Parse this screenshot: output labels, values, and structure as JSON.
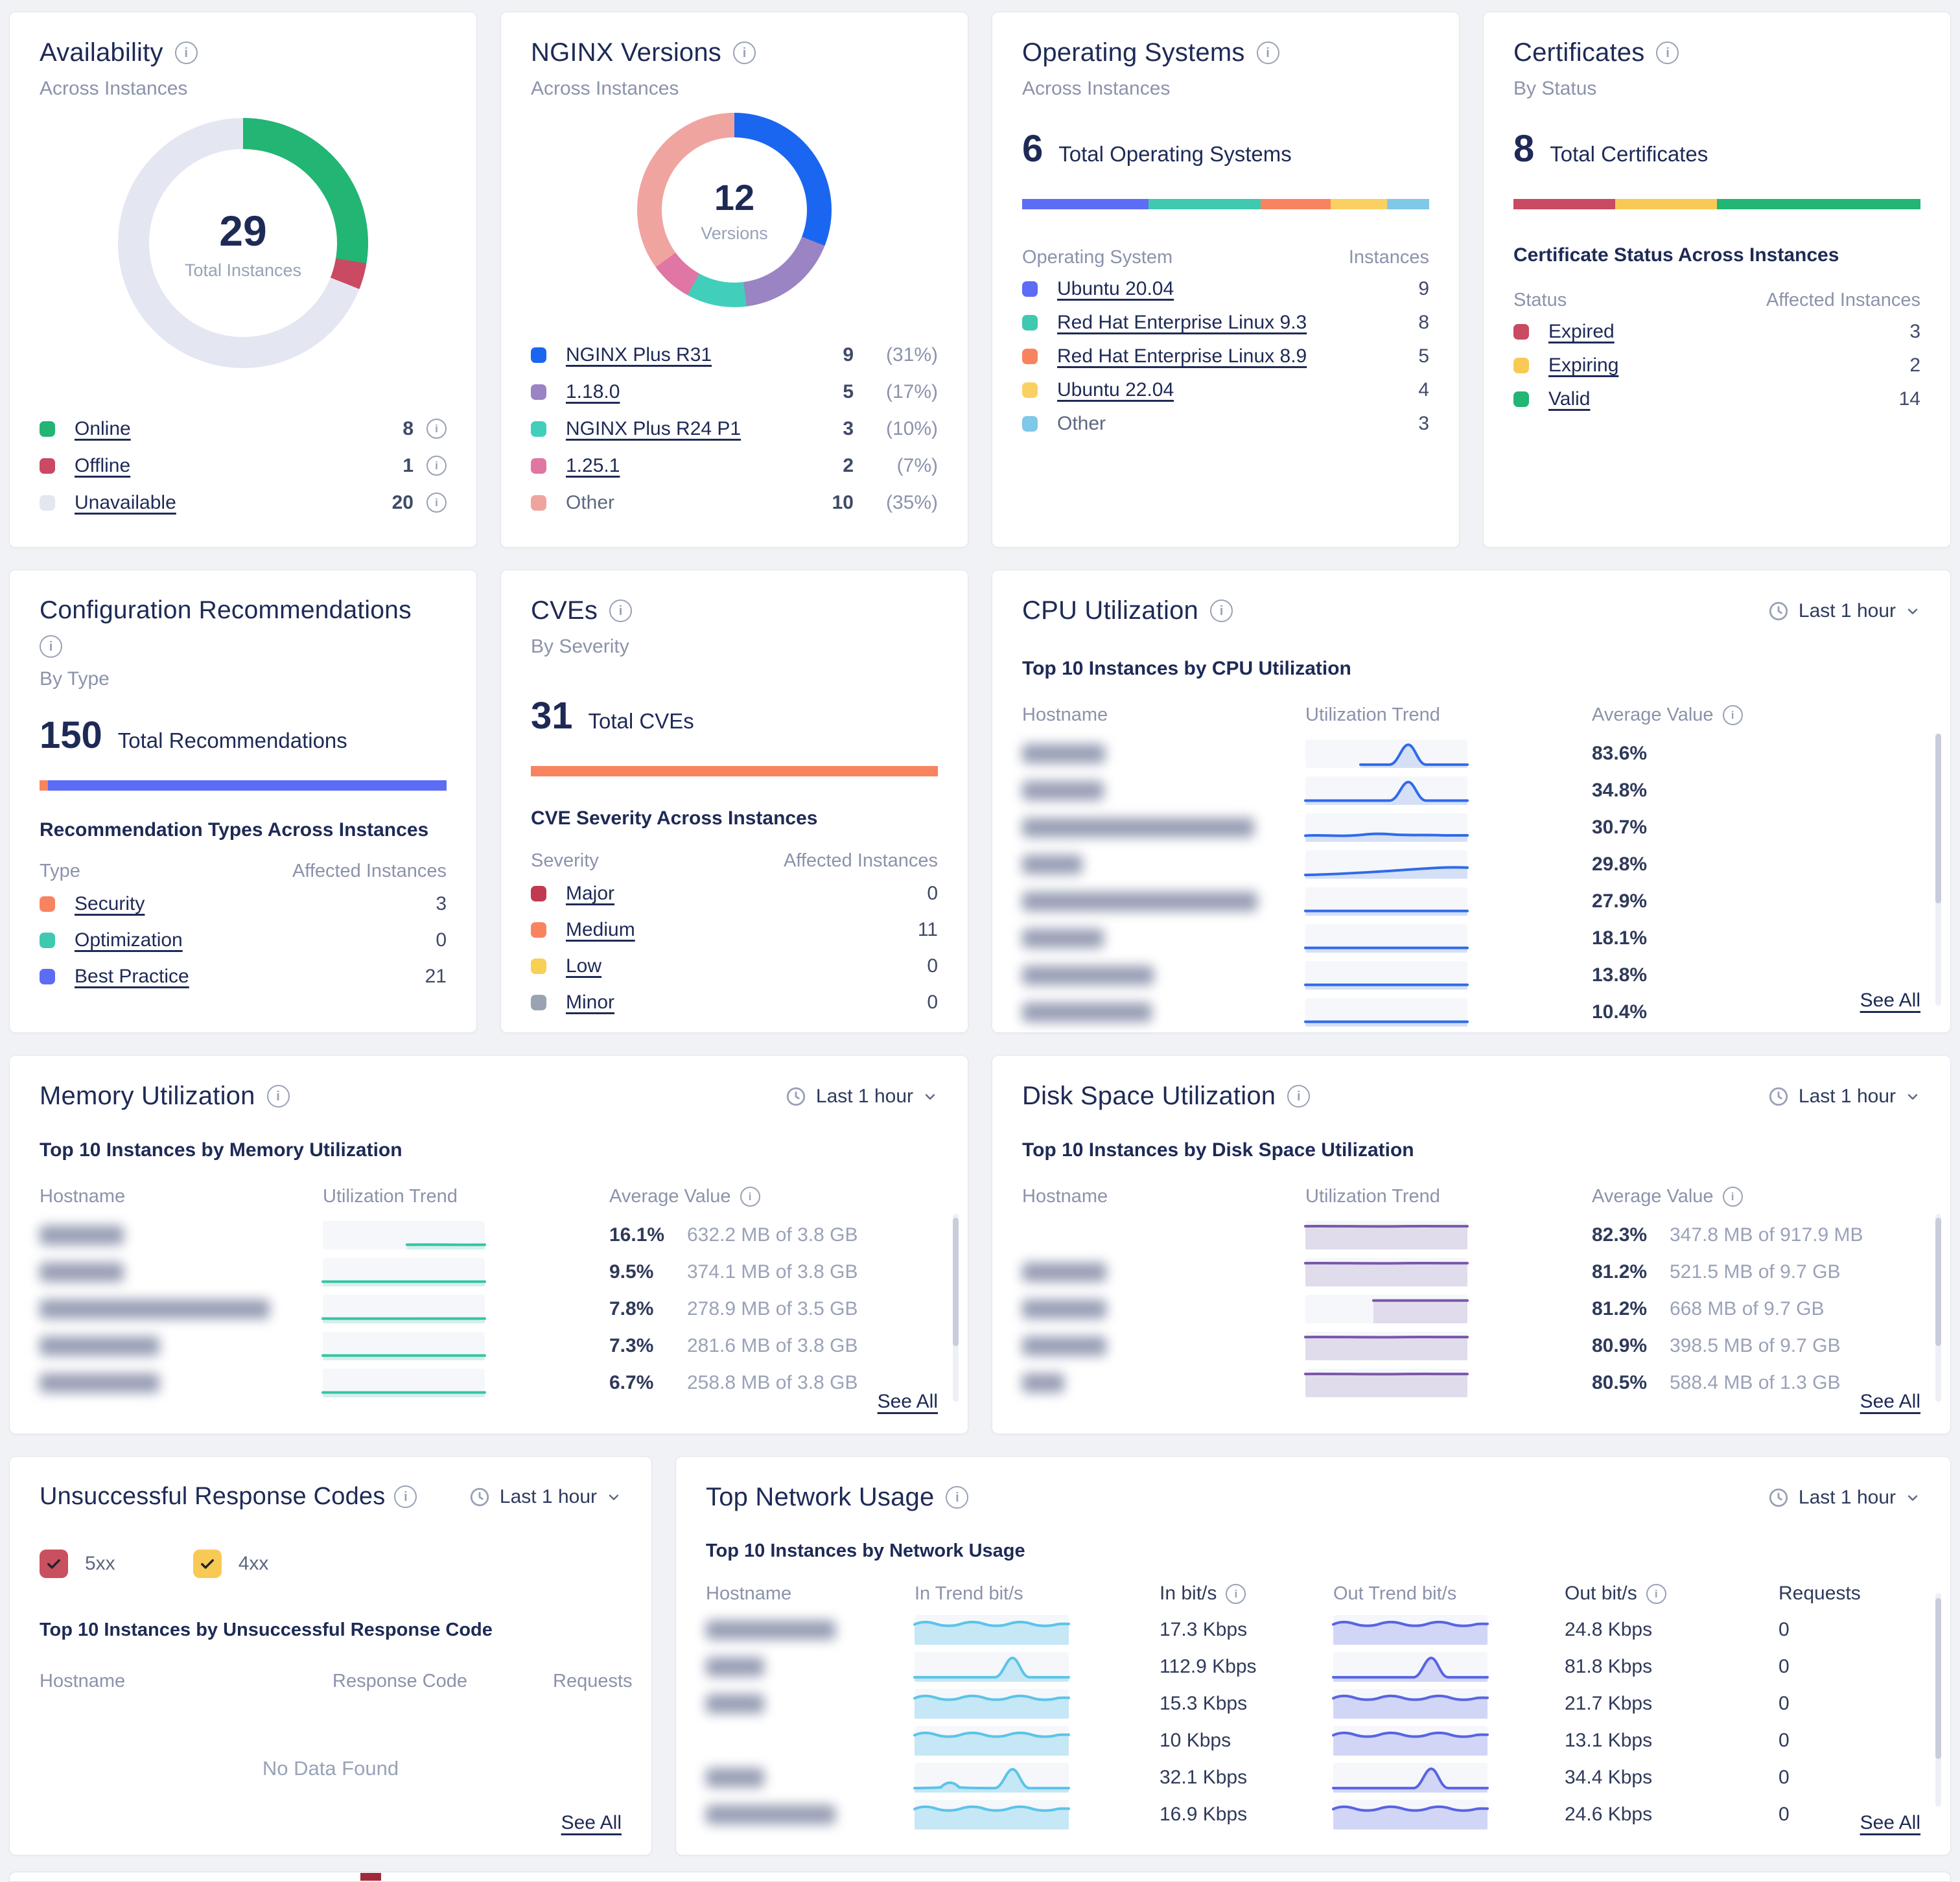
{
  "availability": {
    "title": "Availability",
    "subtitle": "Across Instances",
    "center_value": "29",
    "center_label": "Total Instances",
    "legend": [
      {
        "label": "Online",
        "value": "8",
        "color": "#22b573",
        "pct": 27.6,
        "link": true,
        "info": true
      },
      {
        "label": "Offline",
        "value": "1",
        "color": "#c94a62",
        "pct": 3.4,
        "link": true,
        "info": true
      },
      {
        "label": "Unavailable",
        "value": "20",
        "color": "#e4e7f2",
        "pct": 69.0,
        "link": true,
        "info": true
      }
    ]
  },
  "nginx_versions": {
    "title": "NGINX Versions",
    "subtitle": "Across Instances",
    "center_value": "12",
    "center_label": "Versions",
    "legend": [
      {
        "label": "NGINX Plus R31",
        "value": "9",
        "pct_label": "(31%)",
        "color": "#1b66f0",
        "pct": 31,
        "link": true
      },
      {
        "label": "1.18.0",
        "value": "5",
        "pct_label": "(17%)",
        "color": "#9a84c4",
        "pct": 17,
        "link": true
      },
      {
        "label": "NGINX Plus R24 P1",
        "value": "3",
        "pct_label": "(10%)",
        "color": "#41cfbb",
        "pct": 10,
        "link": true
      },
      {
        "label": "1.25.1",
        "value": "2",
        "pct_label": "(7%)",
        "color": "#e076a4",
        "pct": 7,
        "link": true
      },
      {
        "label": "Other",
        "value": "10",
        "pct_label": "(35%)",
        "color": "#f0a4a0",
        "pct": 35,
        "link": false
      }
    ]
  },
  "operating_systems": {
    "title": "Operating Systems",
    "subtitle": "Across Instances",
    "total": "6",
    "total_label": "Total Operating Systems",
    "col1": "Operating System",
    "col2": "Instances",
    "rows": [
      {
        "label": "Ubuntu 20.04",
        "value": "9",
        "color": "#5d6cf5",
        "pct": 31.0,
        "link": true
      },
      {
        "label": "Red Hat Enterprise Linux 9.3",
        "value": "8",
        "color": "#3fc9b0",
        "pct": 27.6,
        "link": true
      },
      {
        "label": "Red Hat Enterprise Linux 8.9",
        "value": "5",
        "color": "#f8845f",
        "pct": 17.2,
        "link": true
      },
      {
        "label": "Ubuntu 22.04",
        "value": "4",
        "color": "#fbd063",
        "pct": 13.8,
        "link": true
      },
      {
        "label": "Other",
        "value": "3",
        "color": "#7fc8e8",
        "pct": 10.4,
        "link": false
      }
    ]
  },
  "certificates": {
    "title": "Certificates",
    "subtitle": "By Status",
    "total": "8",
    "total_label": "Total Certificates",
    "section": "Certificate Status Across Instances",
    "col1": "Status",
    "col2": "Affected Instances",
    "bar": [
      {
        "color": "#c94a62",
        "pct": 25
      },
      {
        "color": "#f8ca55",
        "pct": 25
      },
      {
        "color": "#22b573",
        "pct": 50
      }
    ],
    "rows": [
      {
        "label": "Expired",
        "value": "3",
        "color": "#c94a62",
        "link": true
      },
      {
        "label": "Expiring",
        "value": "2",
        "color": "#f8ca55",
        "link": true
      },
      {
        "label": "Valid",
        "value": "14",
        "color": "#22b573",
        "link": true
      }
    ]
  },
  "recommendations": {
    "title": "Configuration Recommendations",
    "subtitle": "By Type",
    "total": "150",
    "total_label": "Total Recommendations",
    "section": "Recommendation Types Across Instances",
    "col1": "Type",
    "col2": "Affected Instances",
    "bar": [
      {
        "color": "#f8845f",
        "pct": 2
      },
      {
        "color": "#5d6cf5",
        "pct": 98
      }
    ],
    "rows": [
      {
        "label": "Security",
        "value": "3",
        "color": "#f8845f",
        "link": true
      },
      {
        "label": "Optimization",
        "value": "0",
        "color": "#3fc9b0",
        "link": true
      },
      {
        "label": "Best Practice",
        "value": "21",
        "color": "#5d6cf5",
        "link": true
      }
    ]
  },
  "cves": {
    "title": "CVEs",
    "subtitle": "By Severity",
    "total": "31",
    "total_label": "Total CVEs",
    "section": "CVE Severity Across Instances",
    "col1": "Severity",
    "col2": "Affected Instances",
    "bar": [
      {
        "color": "#f8845f",
        "pct": 100
      }
    ],
    "rows": [
      {
        "label": "Major",
        "value": "0",
        "color": "#c23a52",
        "link": true
      },
      {
        "label": "Medium",
        "value": "11",
        "color": "#f8845f",
        "link": true
      },
      {
        "label": "Low",
        "value": "0",
        "color": "#f9d056",
        "link": true
      },
      {
        "label": "Minor",
        "value": "0",
        "color": "#9aa3b2",
        "link": true
      }
    ]
  },
  "cpu": {
    "title": "CPU Utilization",
    "time_range": "Last 1 hour",
    "section": "Top 10 Instances by CPU Utilization",
    "headers": {
      "hostname": "Hostname",
      "trend": "Utilization Trend",
      "value": "Average Value"
    },
    "see_all": "See All",
    "rows": [
      {
        "blur_w": 128,
        "trend": "spike-late",
        "value": "83.6%"
      },
      {
        "blur_w": 126,
        "trend": "spike",
        "value": "34.8%"
      },
      {
        "blur_w": 358,
        "trend": "wavy",
        "value": "30.7%"
      },
      {
        "blur_w": 93,
        "trend": "rise",
        "value": "29.8%"
      },
      {
        "blur_w": 363,
        "trend": "flat",
        "value": "27.9%"
      },
      {
        "blur_w": 126,
        "trend": "flat",
        "value": "18.1%"
      },
      {
        "blur_w": 203,
        "trend": "flat",
        "value": "13.8%"
      },
      {
        "blur_w": 200,
        "trend": "flat",
        "value": "10.4%"
      }
    ]
  },
  "memory": {
    "title": "Memory Utilization",
    "time_range": "Last 1 hour",
    "section": "Top 10 Instances by Memory Utilization",
    "headers": {
      "hostname": "Hostname",
      "trend": "Utilization Trend",
      "value": "Average Value"
    },
    "see_all": "See All",
    "rows": [
      {
        "blur_w": 130,
        "trend": "flat-short",
        "value": "16.1%",
        "detail": "632.2 MB of 3.8 GB"
      },
      {
        "blur_w": 130,
        "trend": "flat",
        "value": "9.5%",
        "detail": "374.1 MB of 3.8 GB"
      },
      {
        "blur_w": 355,
        "trend": "flat",
        "value": "7.8%",
        "detail": "278.9 MB of 3.5 GB"
      },
      {
        "blur_w": 185,
        "trend": "flat",
        "value": "7.3%",
        "detail": "281.6 MB of 3.8 GB"
      },
      {
        "blur_w": 185,
        "trend": "flat",
        "value": "6.7%",
        "detail": "258.8 MB of 3.8 GB"
      }
    ]
  },
  "disk": {
    "title": "Disk Space Utilization",
    "time_range": "Last 1 hour",
    "section": "Top 10 Instances by Disk Space Utilization",
    "headers": {
      "hostname": "Hostname",
      "trend": "Utilization Trend",
      "value": "Average Value"
    },
    "see_all": "See All",
    "rows": [
      {
        "blur_w": 0,
        "trend": "filled",
        "value": "82.3%",
        "detail": "347.8 MB of 917.9 MB"
      },
      {
        "blur_w": 130,
        "trend": "filled",
        "value": "81.2%",
        "detail": "521.5 MB of 9.7 GB"
      },
      {
        "blur_w": 130,
        "trend": "filled-step",
        "value": "81.2%",
        "detail": "668 MB of 9.7 GB"
      },
      {
        "blur_w": 130,
        "trend": "filled",
        "value": "80.9%",
        "detail": "398.5 MB of 9.7 GB"
      },
      {
        "blur_w": 65,
        "trend": "filled",
        "value": "80.5%",
        "detail": "588.4 MB of 1.3 GB"
      }
    ]
  },
  "response_codes": {
    "title": "Unsuccessful Response Codes",
    "time_range": "Last 1 hour",
    "section": "Top 10 Instances by Unsuccessful Response Code",
    "filters": [
      {
        "label": "5xx",
        "color": "#c9505f",
        "checked": true
      },
      {
        "label": "4xx",
        "color": "#f8ca55",
        "checked": true
      }
    ],
    "headers": {
      "hostname": "Hostname",
      "code": "Response Code",
      "requests": "Requests"
    },
    "empty": "No Data Found",
    "see_all": "See All"
  },
  "network": {
    "title": "Top Network Usage",
    "time_range": "Last 1 hour",
    "section": "Top 10 Instances by Network Usage",
    "headers": {
      "hostname": "Hostname",
      "in_trend": "In Trend bit/s",
      "in": "In bit/s",
      "out_trend": "Out Trend bit/s",
      "out": "Out bit/s",
      "requests": "Requests"
    },
    "see_all": "See All",
    "rows": [
      {
        "blur_w": 200,
        "in_trend": "wavy-full",
        "in": "17.3 Kbps",
        "out_trend": "wavy-full",
        "out": "24.8 Kbps",
        "requests": "0"
      },
      {
        "blur_w": 90,
        "in_trend": "spike",
        "in": "112.9 Kbps",
        "out_trend": "spike",
        "out": "81.8 Kbps",
        "requests": "0"
      },
      {
        "blur_w": 90,
        "in_trend": "wavy-full",
        "in": "15.3 Kbps",
        "out_trend": "wavy-full",
        "out": "21.7 Kbps",
        "requests": "0"
      },
      {
        "blur_w": 0,
        "in_trend": "wavy-full",
        "in": "10 Kbps",
        "out_trend": "wavy-full",
        "out": "13.1 Kbps",
        "requests": "0"
      },
      {
        "blur_w": 90,
        "in_trend": "double-spike",
        "in": "32.1 Kbps",
        "out_trend": "spike",
        "out": "34.4 Kbps",
        "requests": "0"
      },
      {
        "blur_w": 200,
        "in_trend": "wavy-full",
        "in": "16.9 Kbps",
        "out_trend": "wavy-full",
        "out": "24.6 Kbps",
        "requests": "0"
      }
    ]
  }
}
